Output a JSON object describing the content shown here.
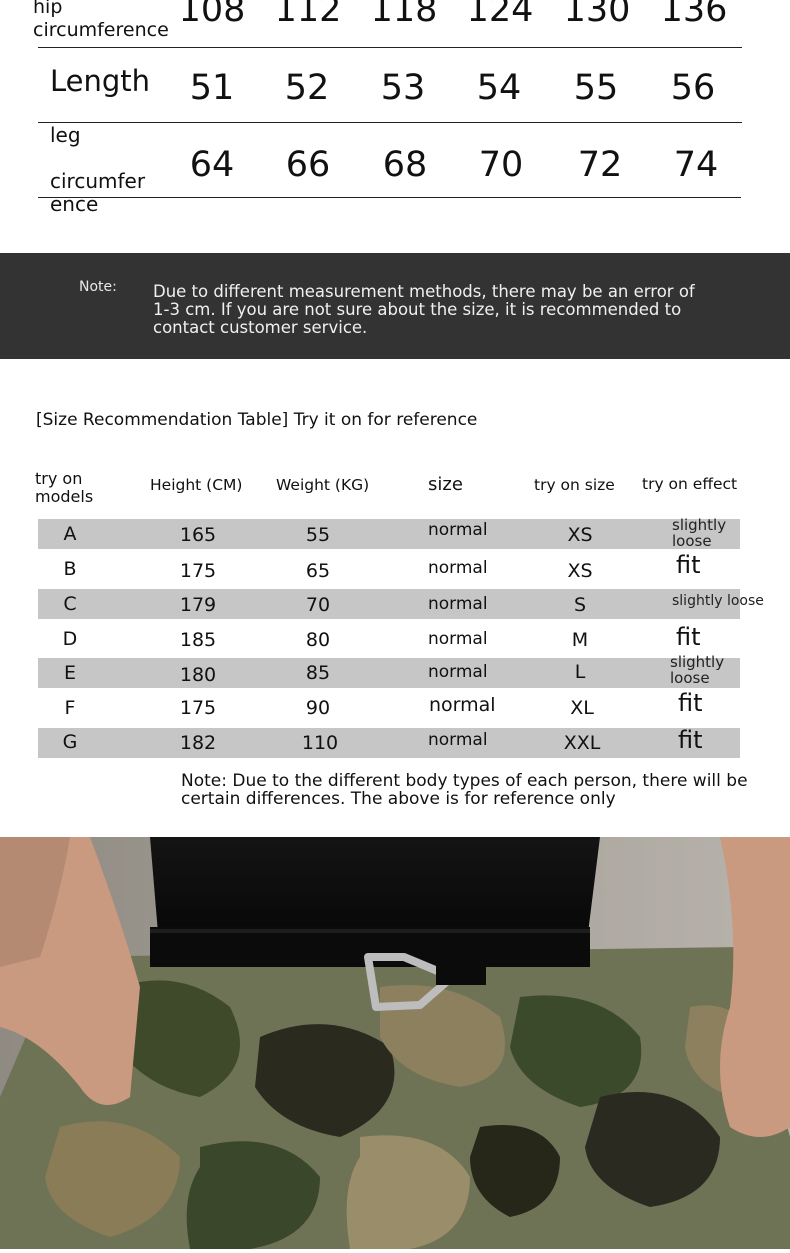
{
  "measurements": {
    "hip": {
      "label_line1": "hip",
      "label_line2": "circumference",
      "values": [
        "108",
        "112",
        "118",
        "124",
        "130",
        "136"
      ]
    },
    "length": {
      "label": "Length",
      "values": [
        "51",
        "52",
        "53",
        "54",
        "55",
        "56"
      ]
    },
    "leg": {
      "label_line1": "leg",
      "label_line2": "circumfer",
      "label_line3": "ence",
      "values": [
        "64",
        "66",
        "68",
        "70",
        "72",
        "74"
      ]
    }
  },
  "note_band": {
    "label": "Note:",
    "text": "Due to different measurement methods, there may be an error of 1-3 cm. If you are not sure about the size, it is recommended to contact customer service."
  },
  "recommendation": {
    "title": "[Size Recommendation Table] Try it on for reference",
    "headers": {
      "models_line1": "try on",
      "models_line2": "models",
      "height": "Height (CM)",
      "weight": "Weight (KG)",
      "size": "size",
      "try_size": "try on size",
      "effect": "try on effect"
    },
    "rows": [
      {
        "model": "A",
        "height": "165",
        "weight": "55",
        "size": "normal",
        "try_size": "XS",
        "effect_line1": "slightly",
        "effect_line2": "loose"
      },
      {
        "model": "B",
        "height": "175",
        "weight": "65",
        "size": "normal",
        "try_size": "XS",
        "effect": "fit"
      },
      {
        "model": "C",
        "height": "179",
        "weight": "70",
        "size": "normal",
        "try_size": "S",
        "effect": "slightly loose"
      },
      {
        "model": "D",
        "height": "185",
        "weight": "80",
        "size": "normal",
        "try_size": "M",
        "effect": "fit"
      },
      {
        "model": "E",
        "height": "180",
        "weight": "85",
        "size": "normal",
        "try_size": "L",
        "effect_line1": "slightly",
        "effect_line2": "loose"
      },
      {
        "model": "F",
        "height": "175",
        "weight": "90",
        "size": "normal",
        "try_size": "XL",
        "effect": "fit"
      },
      {
        "model": "G",
        "height": "182",
        "weight": "110",
        "size": "normal",
        "try_size": "XXL",
        "effect": "fit"
      }
    ],
    "note": "Note: Due to the different body types of each person, there will be certain differences. The above is for reference only"
  },
  "colors": {
    "band": "#333333",
    "stripe": "#c6c6c6",
    "shirt": "#0d0d0d",
    "camo_base": "#6f7356"
  }
}
